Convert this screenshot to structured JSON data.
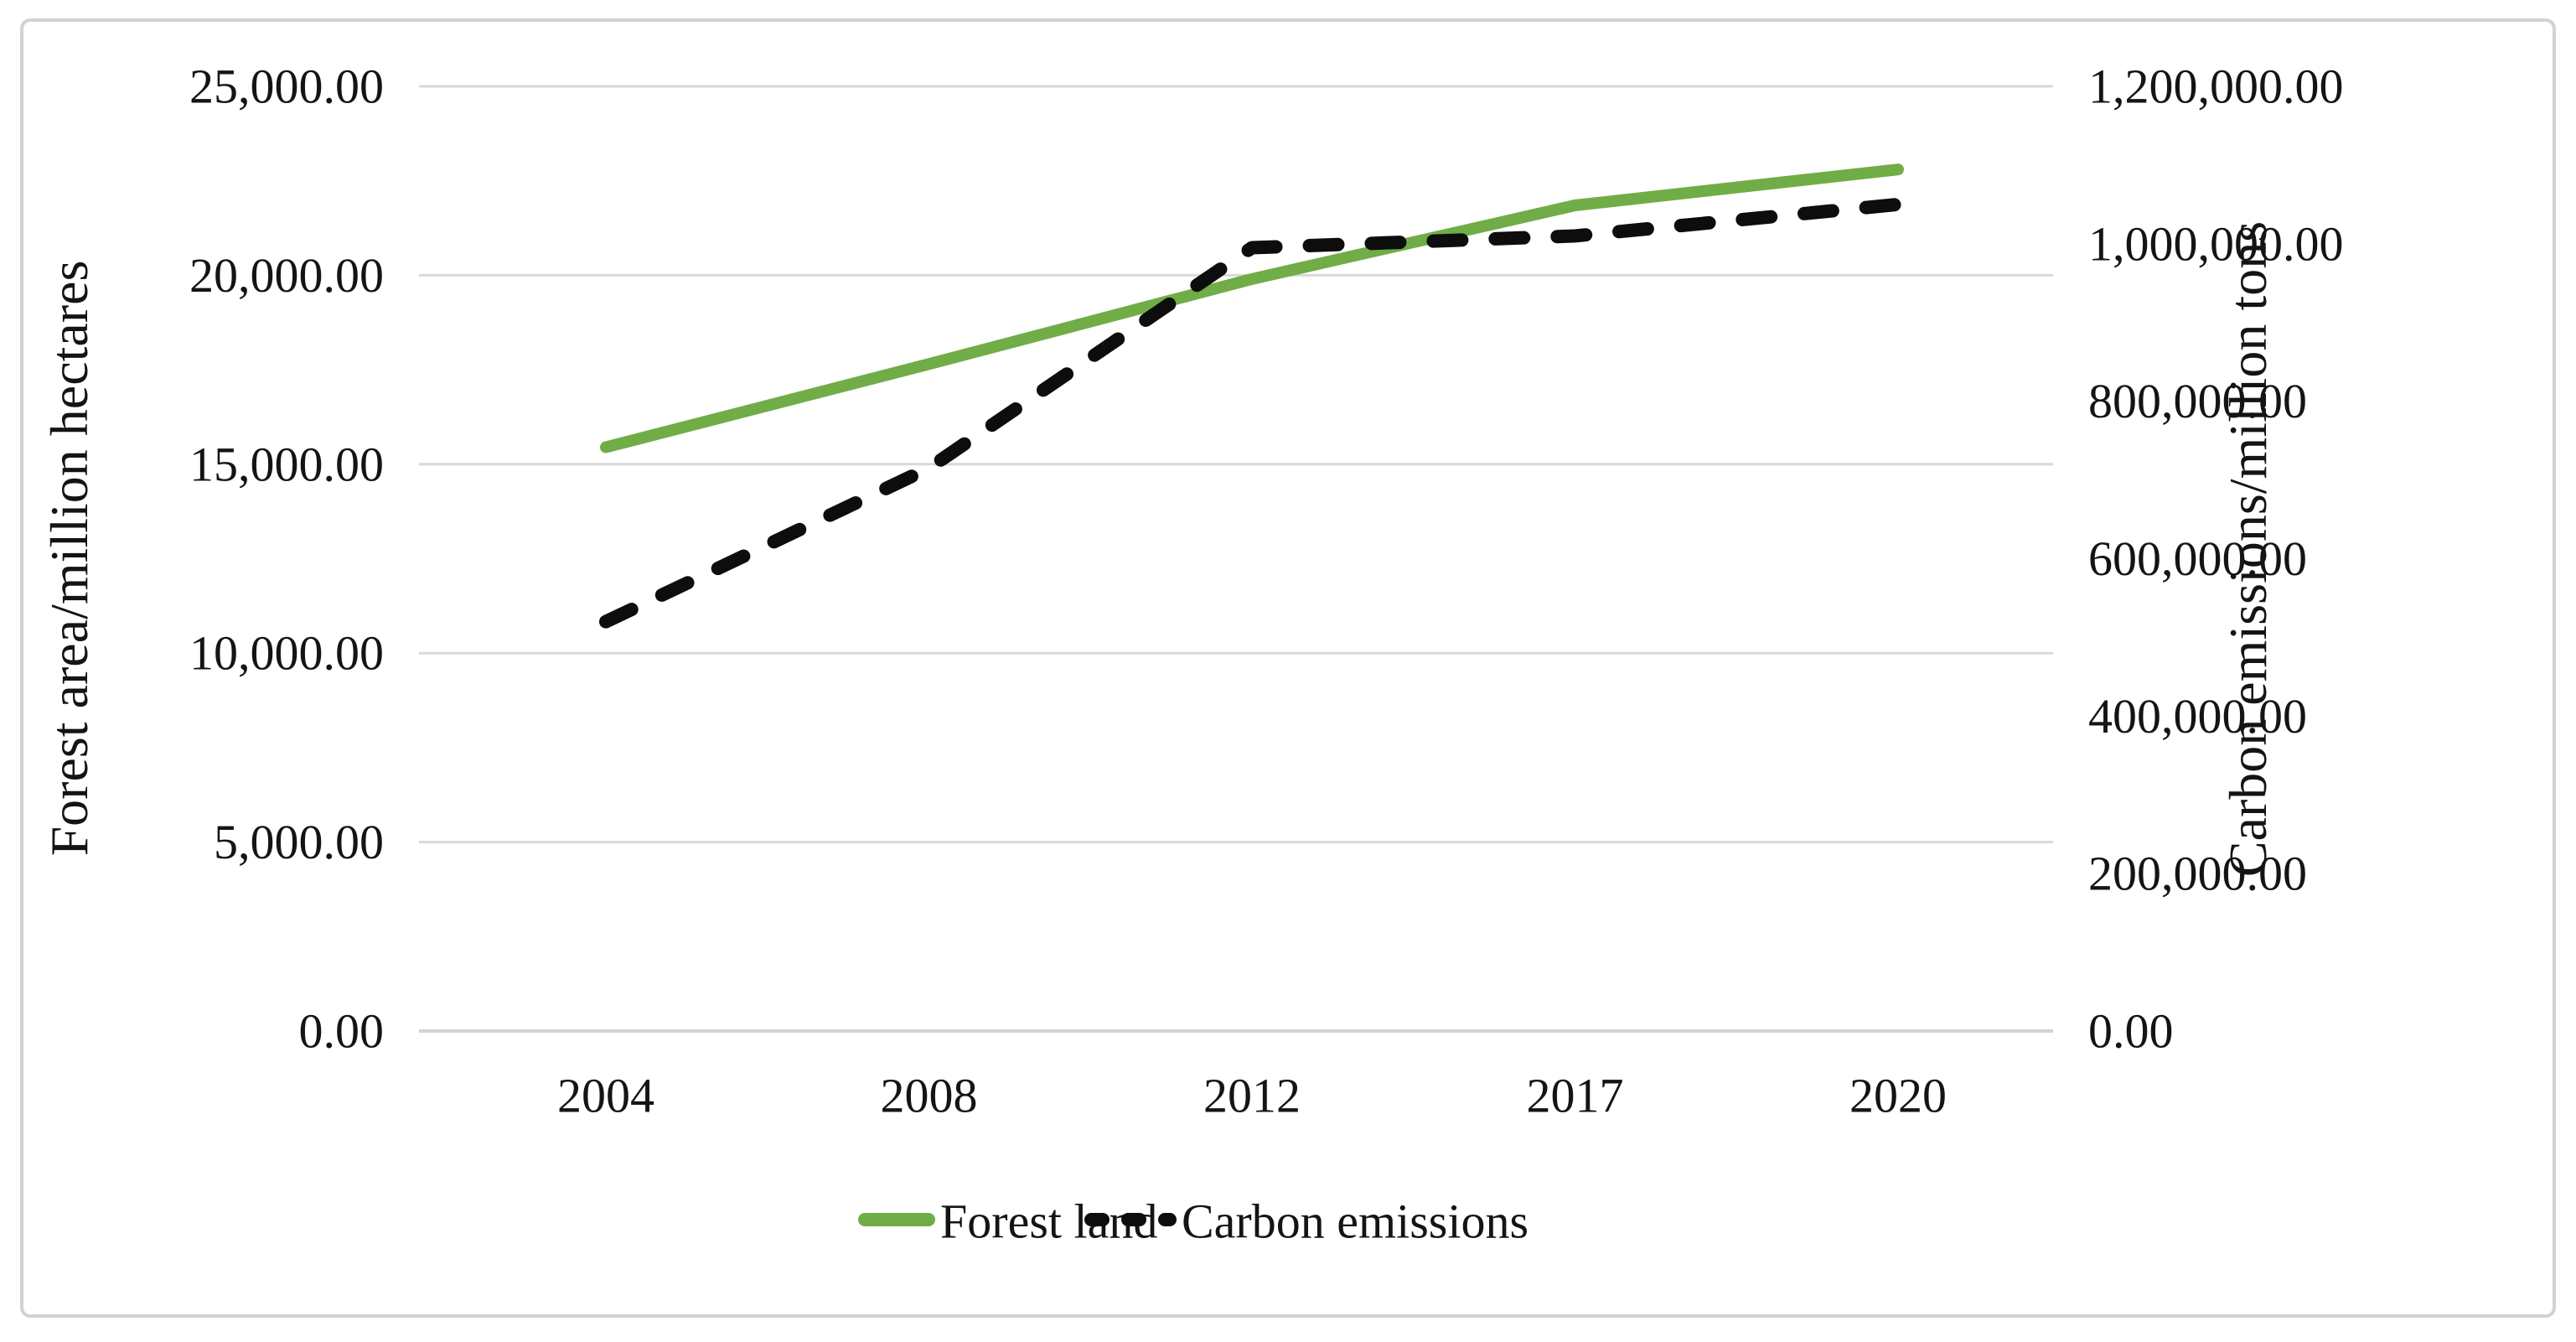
{
  "figure": {
    "background": "#ffffff",
    "border_color": "#d2d2d2"
  },
  "chart_data": {
    "type": "line",
    "categories": [
      "2004",
      "2008",
      "2012",
      "2017",
      "2020"
    ],
    "series": [
      {
        "name": "Forest land",
        "axis": "left",
        "style": "solid",
        "color": "#70AD47",
        "values": [
          15450,
          17650,
          19900,
          21850,
          22800
        ]
      },
      {
        "name": "Carbon emissions",
        "axis": "right",
        "style": "dashed",
        "color": "#0d0d0d",
        "values": [
          520000,
          715000,
          995000,
          1010000,
          1050000
        ]
      }
    ],
    "left_axis": {
      "label": "Forest area/million hectares",
      "min": 0,
      "max": 25000,
      "tick_step": 5000,
      "tick_labels": [
        "0.00",
        "5,000.00",
        "10,000.00",
        "15,000.00",
        "20,000.00",
        "25,000.00"
      ]
    },
    "right_axis": {
      "label": "Carbon emissions/million tons",
      "min": 0,
      "max": 1200000,
      "tick_step": 200000,
      "tick_labels": [
        "0.00",
        "200,000.00",
        "400,000.00",
        "600,000.00",
        "800,000.00",
        "1,000,000.00",
        "1,200,000.00"
      ]
    },
    "grid": true,
    "gridline_color": "#d9d9d9",
    "legend_position": "bottom"
  },
  "legend": {
    "items": [
      {
        "label": "Forest land"
      },
      {
        "label": "Carbon emissions"
      }
    ]
  }
}
